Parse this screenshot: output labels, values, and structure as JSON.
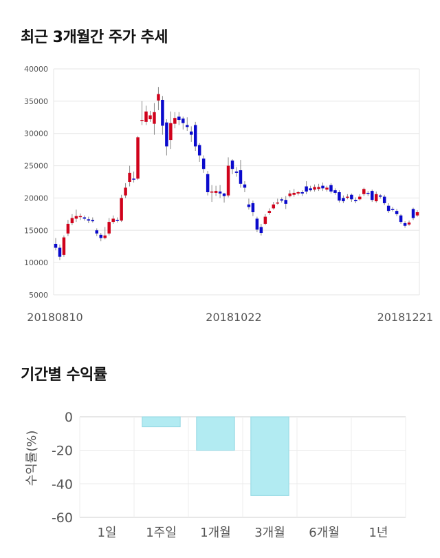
{
  "sections": {
    "price_title": "최근 3개월간 주가 추세",
    "return_title": "기간별 수익률"
  },
  "chart_data": [
    {
      "type": "candlestick",
      "title": "최근 3개월간 주가 추세",
      "y_ticks": [
        40000,
        35000,
        30000,
        25000,
        20000,
        15000,
        10000,
        5000
      ],
      "ylim": [
        5000,
        40000
      ],
      "x_tick_labels": [
        "20180810",
        "20181022",
        "20181221"
      ],
      "grid": true,
      "up_color": "#d0021b",
      "down_color": "#0a0acc",
      "candles": [
        [
          12900,
          12300,
          13800,
          11900
        ],
        [
          12300,
          10900,
          12800,
          10400
        ],
        [
          11200,
          13900,
          14200,
          10900
        ],
        [
          14500,
          16000,
          16600,
          14100
        ],
        [
          16100,
          16900,
          17500,
          15800
        ],
        [
          16800,
          17200,
          18200,
          16300
        ],
        [
          17100,
          17200,
          17600,
          16600
        ],
        [
          17000,
          16800,
          17300,
          16500
        ],
        [
          16700,
          16500,
          17100,
          16100
        ],
        [
          16600,
          16400,
          17000,
          16200
        ],
        [
          15000,
          14500,
          15300,
          14100
        ],
        [
          14300,
          13800,
          14600,
          13300
        ],
        [
          13800,
          14200,
          15500,
          13600
        ],
        [
          14500,
          16300,
          16900,
          14200
        ],
        [
          16300,
          16800,
          17300,
          16000
        ],
        [
          16600,
          16500,
          17000,
          16200
        ],
        [
          16500,
          20000,
          20500,
          16300
        ],
        [
          20400,
          21600,
          22300,
          20000
        ],
        [
          22500,
          23900,
          25000,
          21800
        ],
        [
          23000,
          22900,
          24100,
          22400
        ],
        [
          23000,
          29400,
          29600,
          22800
        ],
        [
          32000,
          32100,
          35000,
          31300
        ],
        [
          31800,
          33400,
          34300,
          31300
        ],
        [
          32200,
          32800,
          33500,
          31800
        ],
        [
          31500,
          33300,
          34700,
          29800
        ],
        [
          35100,
          36100,
          37200,
          33600
        ],
        [
          35200,
          31200,
          35800,
          29800
        ],
        [
          31700,
          28000,
          32200,
          26600
        ],
        [
          29000,
          31600,
          33400,
          27600
        ],
        [
          31500,
          32400,
          33300,
          30800
        ],
        [
          32600,
          32100,
          33300,
          31300
        ],
        [
          32300,
          31600,
          32600,
          30600
        ],
        [
          31300,
          31000,
          32500,
          30400
        ],
        [
          30300,
          29800,
          31100,
          28700
        ],
        [
          31300,
          28000,
          31800,
          27300
        ],
        [
          28200,
          26600,
          28500,
          25600
        ],
        [
          26100,
          24500,
          26600,
          23900
        ],
        [
          23700,
          20900,
          24200,
          20400
        ],
        [
          20900,
          21000,
          22000,
          19400
        ],
        [
          20800,
          21100,
          21900,
          20300
        ],
        [
          21000,
          20700,
          22000,
          20000
        ],
        [
          20700,
          20300,
          20800,
          19300
        ],
        [
          20400,
          25000,
          26300,
          20100
        ],
        [
          25800,
          24500,
          26000,
          23700
        ],
        [
          24100,
          23900,
          24800,
          23300
        ],
        [
          24300,
          22200,
          25900,
          21600
        ],
        [
          22100,
          21600,
          22600,
          20900
        ],
        [
          19000,
          18600,
          19900,
          18200
        ],
        [
          19200,
          17800,
          19600,
          17200
        ],
        [
          16800,
          15100,
          17100,
          14700
        ],
        [
          15500,
          14600,
          16000,
          14200
        ],
        [
          16000,
          17100,
          17500,
          15800
        ],
        [
          17700,
          18000,
          18400,
          17400
        ],
        [
          18400,
          19000,
          19400,
          18200
        ],
        [
          19300,
          19300,
          19900,
          19000
        ],
        [
          19800,
          19600,
          20100,
          19300
        ],
        [
          19700,
          19100,
          20300,
          18300
        ],
        [
          20300,
          20700,
          21200,
          20100
        ],
        [
          20500,
          20800,
          21400,
          20200
        ],
        [
          20700,
          20900,
          21100,
          20400
        ],
        [
          20900,
          20700,
          21200,
          20300
        ],
        [
          21800,
          21000,
          22600,
          20600
        ],
        [
          21500,
          21200,
          21900,
          21000
        ],
        [
          21300,
          21700,
          22100,
          21000
        ],
        [
          21400,
          21700,
          22200,
          21100
        ],
        [
          21900,
          21500,
          22400,
          21100
        ],
        [
          21300,
          21600,
          21900,
          21000
        ],
        [
          22000,
          21000,
          22300,
          20700
        ],
        [
          21200,
          20800,
          21500,
          20500
        ],
        [
          20900,
          19600,
          21200,
          19300
        ],
        [
          20000,
          19500,
          20400,
          19200
        ],
        [
          20100,
          20200,
          20600,
          19800
        ],
        [
          20500,
          19800,
          20700,
          19400
        ],
        [
          19700,
          19500,
          20100,
          19200
        ],
        [
          19800,
          20200,
          20600,
          19600
        ],
        [
          20600,
          21400,
          21600,
          20300
        ],
        [
          20800,
          20700,
          21100,
          20300
        ],
        [
          21100,
          19700,
          21300,
          19400
        ],
        [
          19500,
          20600,
          21000,
          19300
        ],
        [
          20400,
          20200,
          20600,
          19900
        ],
        [
          20200,
          19200,
          20500,
          18900
        ],
        [
          18800,
          18000,
          19200,
          17700
        ],
        [
          18300,
          18200,
          18600,
          17900
        ],
        [
          18000,
          17500,
          18300,
          17200
        ],
        [
          17300,
          16300,
          17500,
          16000
        ],
        [
          16100,
          15700,
          16400,
          15400
        ],
        [
          15900,
          16200,
          16500,
          15700
        ],
        [
          18300,
          16900,
          18500,
          16600
        ],
        [
          17300,
          17800,
          18100,
          17100
        ]
      ]
    },
    {
      "type": "bar",
      "title": "기간별 수익률",
      "ylabel": "수익률(%)",
      "categories": [
        "1일",
        "1주일",
        "1개월",
        "3개월",
        "6개월",
        "1년"
      ],
      "values": [
        0,
        -6,
        -20,
        -47,
        0,
        0
      ],
      "ylim": [
        -60,
        0
      ],
      "y_ticks": [
        0,
        -20,
        -40,
        -60
      ],
      "bar_color": "#b2ebf2",
      "bar_border": "#90d6e2"
    }
  ]
}
